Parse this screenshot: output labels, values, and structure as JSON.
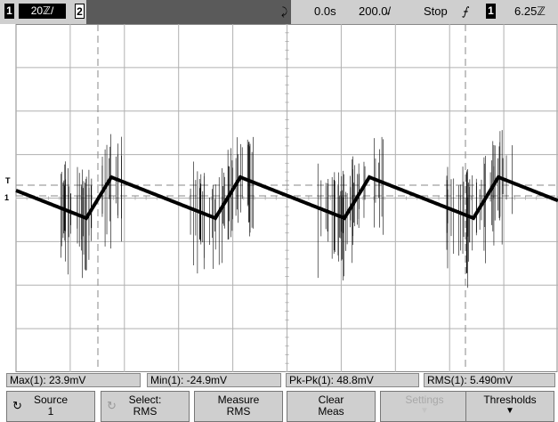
{
  "status_bar": {
    "channel1_number": "1",
    "channel1_scale": "20ℤ/",
    "channel2_number": "2",
    "trigger_delay_marker": "⤸",
    "time_delay": "0.0s",
    "time_scale": "200.0̵/",
    "run_state": "Stop",
    "trigger_edge_symbol": "⨍",
    "trigger_source": "1",
    "trigger_level": "6.25ℤ"
  },
  "screen_markers": {
    "trigger_level_marker": "T",
    "channel1_ground_marker": "1"
  },
  "measurements": [
    {
      "label": "Max(1): 23.9mV"
    },
    {
      "label": "Min(1): -24.9mV"
    },
    {
      "label": "Pk-Pk(1): 48.8mV"
    },
    {
      "label": "RMS(1): 5.490mV"
    }
  ],
  "softkeys": [
    {
      "line1": "Source",
      "line2": "1",
      "enabled": true,
      "knob": true
    },
    {
      "line1": "Select:",
      "line2": "RMS",
      "enabled": true,
      "knob": true
    },
    {
      "line1": "Measure",
      "line2": "RMS",
      "enabled": true,
      "knob": false
    },
    {
      "line1": "Clear",
      "line2": "Meas",
      "enabled": true,
      "knob": false
    },
    {
      "line1": "Settings",
      "line2": "",
      "enabled": false,
      "knob": false
    },
    {
      "line1": "Thresholds",
      "line2": "",
      "enabled": true,
      "knob": false
    }
  ],
  "colors": {
    "trace": "#000000",
    "grid": "#b0b0b0",
    "background": "#ffffff",
    "bar": "#cfcfcf"
  }
}
